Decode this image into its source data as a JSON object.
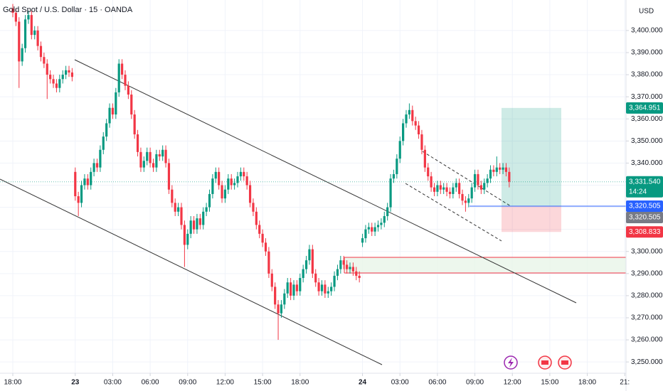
{
  "chart_data": {
    "type": "candlestick",
    "title": "Gold Spot / U.S. Dollar · 15 · OANDA",
    "currency": "USD",
    "up_color": "#089981",
    "down_color": "#f23645",
    "grid": true,
    "open": [
      3410,
      3408,
      3404,
      3386,
      3392,
      3405,
      3407,
      3398,
      3400,
      3393,
      3388,
      3385,
      3380,
      3378,
      3376,
      3374,
      3378,
      3380,
      3382,
      3381,
      3336,
      3325,
      3322,
      3330,
      3333,
      3330,
      3336,
      3340,
      3338,
      3346,
      3352,
      3358,
      3365,
      3362,
      3372,
      3385,
      3380,
      3375,
      3371,
      3362,
      3353,
      3345,
      3338,
      3341,
      3345,
      3340,
      3338,
      3344,
      3343,
      3346,
      3340,
      3328,
      3322,
      3318,
      3320,
      3312,
      3303,
      3308,
      3314,
      3310,
      3315,
      3312,
      3318,
      3320,
      3326,
      3333,
      3336,
      3330,
      3324,
      3328,
      3333,
      3330,
      3331,
      3334,
      3336,
      3334,
      3330,
      3322,
      3318,
      3312,
      3308,
      3304,
      3300,
      3290,
      3284,
      3276,
      3272,
      3276,
      3281,
      3286,
      3280,
      3285,
      3282,
      3288,
      3292,
      3296,
      3301,
      3290,
      3286,
      3282,
      3285,
      3281,
      3282,
      3284,
      3289,
      3292,
      3296,
      3294,
      3292,
      3293,
      3291,
      3289,
      3304,
      3306,
      3310,
      3311,
      3309,
      3311,
      3312,
      3313,
      3316,
      3320,
      3333,
      3335,
      3342,
      3350,
      3358,
      3362,
      3364,
      3359,
      3357,
      3353,
      3346,
      3338,
      3334,
      3329,
      3327,
      3330,
      3328,
      3329,
      3327,
      3326,
      3329,
      3331,
      3326,
      3323,
      3322,
      3324,
      3329,
      3335,
      3330,
      3328,
      3331,
      3333,
      3337,
      3336,
      3338,
      3337,
      3338,
      3336
    ],
    "high": [
      3412,
      3410,
      3406,
      3394,
      3407,
      3409,
      3409,
      3402,
      3402,
      3395,
      3390,
      3387,
      3382,
      3380,
      3378,
      3380,
      3382,
      3384,
      3384,
      3383,
      3338,
      3327,
      3332,
      3335,
      3335,
      3338,
      3342,
      3342,
      3348,
      3354,
      3360,
      3367,
      3367,
      3374,
      3387,
      3387,
      3382,
      3377,
      3373,
      3364,
      3355,
      3347,
      3343,
      3347,
      3347,
      3342,
      3346,
      3346,
      3348,
      3348,
      3342,
      3330,
      3324,
      3322,
      3322,
      3314,
      3310,
      3316,
      3316,
      3317,
      3317,
      3320,
      3322,
      3328,
      3335,
      3338,
      3338,
      3332,
      3330,
      3335,
      3335,
      3333,
      3336,
      3338,
      3338,
      3336,
      3332,
      3324,
      3320,
      3314,
      3310,
      3306,
      3302,
      3292,
      3286,
      3278,
      3278,
      3283,
      3288,
      3288,
      3287,
      3287,
      3290,
      3294,
      3298,
      3303,
      3303,
      3292,
      3288,
      3287,
      3287,
      3284,
      3286,
      3291,
      3294,
      3298,
      3298,
      3296,
      3295,
      3295,
      3293,
      3291,
      3308,
      3312,
      3313,
      3313,
      3313,
      3314,
      3315,
      3318,
      3322,
      3335,
      3337,
      3344,
      3352,
      3360,
      3364,
      3367,
      3366,
      3361,
      3359,
      3355,
      3348,
      3340,
      3336,
      3331,
      3332,
      3332,
      3331,
      3331,
      3329,
      3331,
      3333,
      3333,
      3328,
      3325,
      3326,
      3331,
      3337,
      3337,
      3332,
      3333,
      3335,
      3339,
      3339,
      3343,
      3340,
      3340,
      3340,
      3338
    ],
    "low": [
      3406,
      3402,
      3374,
      3384,
      3390,
      3403,
      3396,
      3396,
      3391,
      3386,
      3383,
      3369,
      3376,
      3374,
      3372,
      3372,
      3376,
      3378,
      3379,
      3377,
      3323,
      3316,
      3320,
      3328,
      3328,
      3328,
      3334,
      3336,
      3336,
      3344,
      3350,
      3356,
      3360,
      3360,
      3370,
      3378,
      3373,
      3369,
      3360,
      3351,
      3343,
      3336,
      3336,
      3339,
      3338,
      3336,
      3336,
      3341,
      3341,
      3338,
      3326,
      3320,
      3316,
      3316,
      3310,
      3293,
      3301,
      3306,
      3308,
      3308,
      3310,
      3310,
      3316,
      3318,
      3324,
      3331,
      3328,
      3322,
      3322,
      3326,
      3328,
      3328,
      3329,
      3332,
      3332,
      3328,
      3320,
      3316,
      3310,
      3306,
      3302,
      3298,
      3288,
      3282,
      3274,
      3260,
      3270,
      3274,
      3279,
      3278,
      3278,
      3280,
      3280,
      3286,
      3290,
      3294,
      3288,
      3284,
      3280,
      3280,
      3279,
      3279,
      3280,
      3282,
      3287,
      3290,
      3292,
      3290,
      3290,
      3289,
      3287,
      3286,
      3302,
      3304,
      3308,
      3307,
      3307,
      3309,
      3310,
      3311,
      3314,
      3318,
      3331,
      3333,
      3340,
      3348,
      3356,
      3360,
      3357,
      3355,
      3351,
      3344,
      3336,
      3332,
      3327,
      3325,
      3325,
      3326,
      3326,
      3325,
      3324,
      3324,
      3327,
      3324,
      3321,
      3318,
      3320,
      3322,
      3327,
      3328,
      3326,
      3326,
      3329,
      3331,
      3334,
      3334,
      3335,
      3335,
      3334,
      3329
    ],
    "close": [
      3408,
      3404,
      3386,
      3392,
      3405,
      3407,
      3398,
      3400,
      3393,
      3388,
      3385,
      3380,
      3378,
      3376,
      3374,
      3378,
      3380,
      3382,
      3381,
      3379,
      3325,
      3322,
      3330,
      3333,
      3330,
      3336,
      3340,
      3338,
      3346,
      3352,
      3358,
      3365,
      3362,
      3372,
      3385,
      3380,
      3375,
      3371,
      3362,
      3353,
      3345,
      3338,
      3341,
      3345,
      3340,
      3338,
      3344,
      3343,
      3346,
      3340,
      3328,
      3322,
      3318,
      3320,
      3312,
      3303,
      3308,
      3314,
      3310,
      3315,
      3312,
      3318,
      3320,
      3326,
      3333,
      3336,
      3330,
      3324,
      3328,
      3333,
      3330,
      3331,
      3334,
      3336,
      3334,
      3330,
      3322,
      3318,
      3312,
      3308,
      3304,
      3300,
      3290,
      3284,
      3276,
      3272,
      3276,
      3281,
      3286,
      3280,
      3285,
      3282,
      3288,
      3292,
      3296,
      3301,
      3290,
      3286,
      3282,
      3285,
      3281,
      3282,
      3284,
      3289,
      3292,
      3296,
      3294,
      3292,
      3293,
      3291,
      3289,
      3288,
      3306,
      3310,
      3311,
      3309,
      3311,
      3312,
      3313,
      3316,
      3320,
      3333,
      3335,
      3342,
      3350,
      3358,
      3362,
      3364,
      3359,
      3357,
      3353,
      3346,
      3338,
      3334,
      3329,
      3327,
      3330,
      3328,
      3329,
      3327,
      3326,
      3329,
      3331,
      3326,
      3323,
      3322,
      3324,
      3329,
      3335,
      3330,
      3328,
      3331,
      3333,
      3337,
      3336,
      3338,
      3337,
      3338,
      3336,
      3331.54
    ],
    "xlim": [
      -4.1,
      196.4
    ],
    "xticks": [
      {
        "value": 0,
        "label": "18:00"
      },
      {
        "value": 20,
        "label": "23"
      },
      {
        "value": 32,
        "label": "03:00"
      },
      {
        "value": 44,
        "label": "06:00"
      },
      {
        "value": 56,
        "label": "09:00"
      },
      {
        "value": 68,
        "label": "12:00"
      },
      {
        "value": 80,
        "label": "15:00"
      },
      {
        "value": 92,
        "label": "18:00"
      },
      {
        "value": 112,
        "label": "24"
      },
      {
        "value": 124,
        "label": "03:00"
      },
      {
        "value": 136,
        "label": "06:00"
      },
      {
        "value": 148,
        "label": "09:00"
      },
      {
        "value": 160,
        "label": "12:00"
      },
      {
        "value": 172,
        "label": "15:00"
      },
      {
        "value": 184,
        "label": "18:00"
      },
      {
        "value": 196,
        "label": "21:"
      }
    ],
    "ylim": [
      3244.9,
      3413.8
    ],
    "yticks": [
      {
        "value": 3250,
        "label": "3,250.000"
      },
      {
        "value": 3260,
        "label": "3,260.000"
      },
      {
        "value": 3270,
        "label": "3,270.000"
      },
      {
        "value": 3280,
        "label": "3,280.000"
      },
      {
        "value": 3290,
        "label": "3,290.000"
      },
      {
        "value": 3300,
        "label": "3,300.000"
      },
      {
        "value": 3310,
        "label": "3,310.000"
      },
      {
        "value": 3320,
        "label": "3,320.000"
      },
      {
        "value": 3330,
        "label": "3,330.000"
      },
      {
        "value": 3340,
        "label": "3,340.000"
      },
      {
        "value": 3350,
        "label": "3,350.000"
      },
      {
        "value": 3360,
        "label": "3,360.000"
      },
      {
        "value": 3370,
        "label": "3,370.000"
      },
      {
        "value": 3380,
        "label": "3,380.000"
      },
      {
        "value": 3390,
        "label": "3,390.000"
      },
      {
        "value": 3400,
        "label": "3,400.000"
      }
    ],
    "position": {
      "target": {
        "value": 3364.951,
        "label": "3,364.951"
      },
      "entry": {
        "value": 3320.505,
        "label": "3,320.505"
      },
      "stop": {
        "value": 3308.833,
        "label": "3,308.833"
      }
    },
    "entry_line_label": {
      "value": 3320.505,
      "label": "3,320.505"
    },
    "last_price": {
      "value": 3331.54,
      "label": "3,331.540",
      "countdown": "14:24"
    }
  }
}
